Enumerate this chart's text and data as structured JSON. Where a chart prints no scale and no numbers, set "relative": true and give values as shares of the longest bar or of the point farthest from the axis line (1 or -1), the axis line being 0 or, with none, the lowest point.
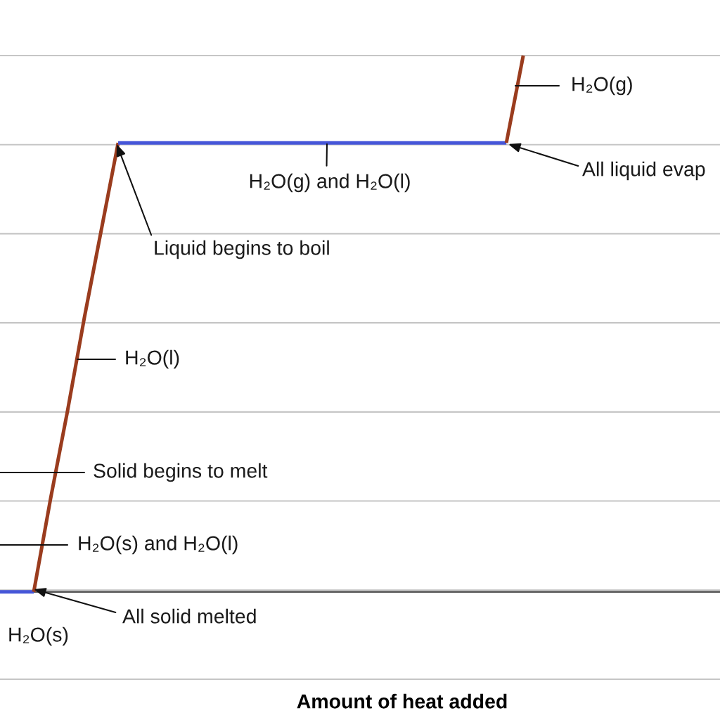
{
  "chart_data": {
    "type": "line",
    "relative": true,
    "xlabel": "Amount of heat added",
    "grid": "y",
    "categories": [
      null,
      null,
      null,
      null,
      null,
      null,
      null,
      null,
      null,
      null,
      null,
      null,
      null,
      null,
      null,
      null,
      null,
      null,
      null,
      null,
      null,
      null,
      null,
      null,
      null,
      null,
      null,
      null,
      null,
      null,
      null,
      null
    ],
    "series": [
      {
        "color": "#4656d8",
        "values": [
          0.14,
          0.14,
          0.14,
          null,
          null,
          null,
          null,
          null,
          null,
          null,
          null,
          null,
          null,
          null,
          null,
          null,
          null,
          null,
          null,
          null,
          null,
          null,
          null,
          null,
          null,
          null,
          null,
          null,
          null,
          null,
          null,
          null
        ]
      },
      {
        "color": "#9a3c1e",
        "values": [
          null,
          null,
          0.14,
          0.29,
          0.43,
          0.58,
          0.72,
          0.86,
          null,
          null,
          null,
          null,
          null,
          null,
          null,
          null,
          null,
          null,
          null,
          null,
          null,
          null,
          null,
          null,
          null,
          null,
          null,
          null,
          null,
          null,
          null,
          null
        ]
      },
      {
        "color": "#4656d8",
        "values": [
          null,
          null,
          null,
          null,
          null,
          null,
          null,
          0.86,
          0.86,
          0.86,
          0.86,
          0.86,
          0.86,
          0.86,
          0.86,
          0.86,
          0.86,
          0.86,
          0.86,
          0.86,
          0.86,
          0.86,
          0.86,
          0.86,
          0.86,
          0.86,
          0.86,
          0.86,
          0.86,
          0.86,
          0.86,
          null
        ]
      },
      {
        "color": "#9a3c1e",
        "values": [
          null,
          null,
          null,
          null,
          null,
          null,
          null,
          null,
          null,
          null,
          null,
          null,
          null,
          null,
          null,
          null,
          null,
          null,
          null,
          null,
          null,
          null,
          null,
          null,
          null,
          null,
          null,
          null,
          null,
          null,
          0.86,
          1
        ]
      }
    ],
    "ref_lines": [
      {
        "axis": "y",
        "value": 0.14,
        "color": "#555555"
      }
    ],
    "annotations": [
      "H₂O(g)",
      "All liquid evap",
      "H₂O(g) and H₂O(l)",
      "Liquid begins to boil",
      "H₂O(l)",
      "Solid begins to melt",
      "H₂O(s) and H₂O(l)",
      "All solid melted",
      "H₂O(s)"
    ]
  }
}
